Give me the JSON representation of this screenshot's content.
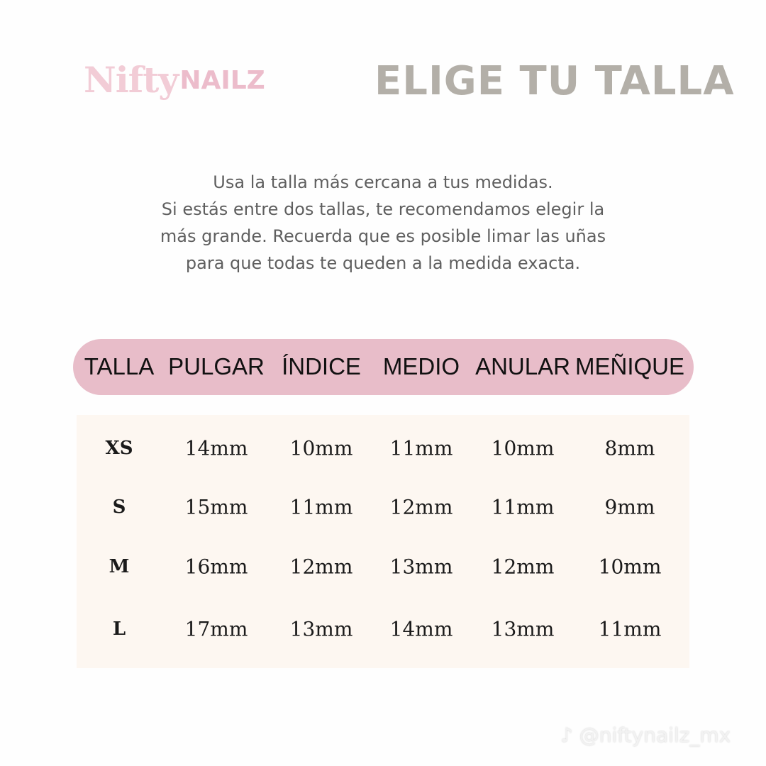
{
  "brand": {
    "logo_script": "Nifty",
    "logo_bold": "NAILZ",
    "color": "#ecbccb"
  },
  "title": "ELIGE TU TALLA",
  "intro": [
    "Usa la talla más cercana a tus medidas.",
    "Si estás entre dos tallas, te recomendamos elegir la",
    "más grande. Recuerda que es posible limar las uñas",
    "para que todas te queden a la medida exacta."
  ],
  "table": {
    "header_color": "#e8bdc9",
    "headers": [
      "TALLA",
      "PULGAR",
      "ÍNDICE",
      "MEDIO",
      "ANULAR",
      "MEÑIQUE"
    ],
    "rows": [
      [
        "XS",
        "14mm",
        "10mm",
        "11mm",
        "10mm",
        "8mm"
      ],
      [
        "S",
        "15mm",
        "11mm",
        "12mm",
        "11mm",
        "9mm"
      ],
      [
        "M",
        "16mm",
        "12mm",
        "13mm",
        "12mm",
        "10mm"
      ],
      [
        "L",
        "17mm",
        "13mm",
        "14mm",
        "13mm",
        "11mm"
      ]
    ]
  },
  "watermark": {
    "icon": "tiktok-icon",
    "handle": "@niftynailz_mx"
  }
}
